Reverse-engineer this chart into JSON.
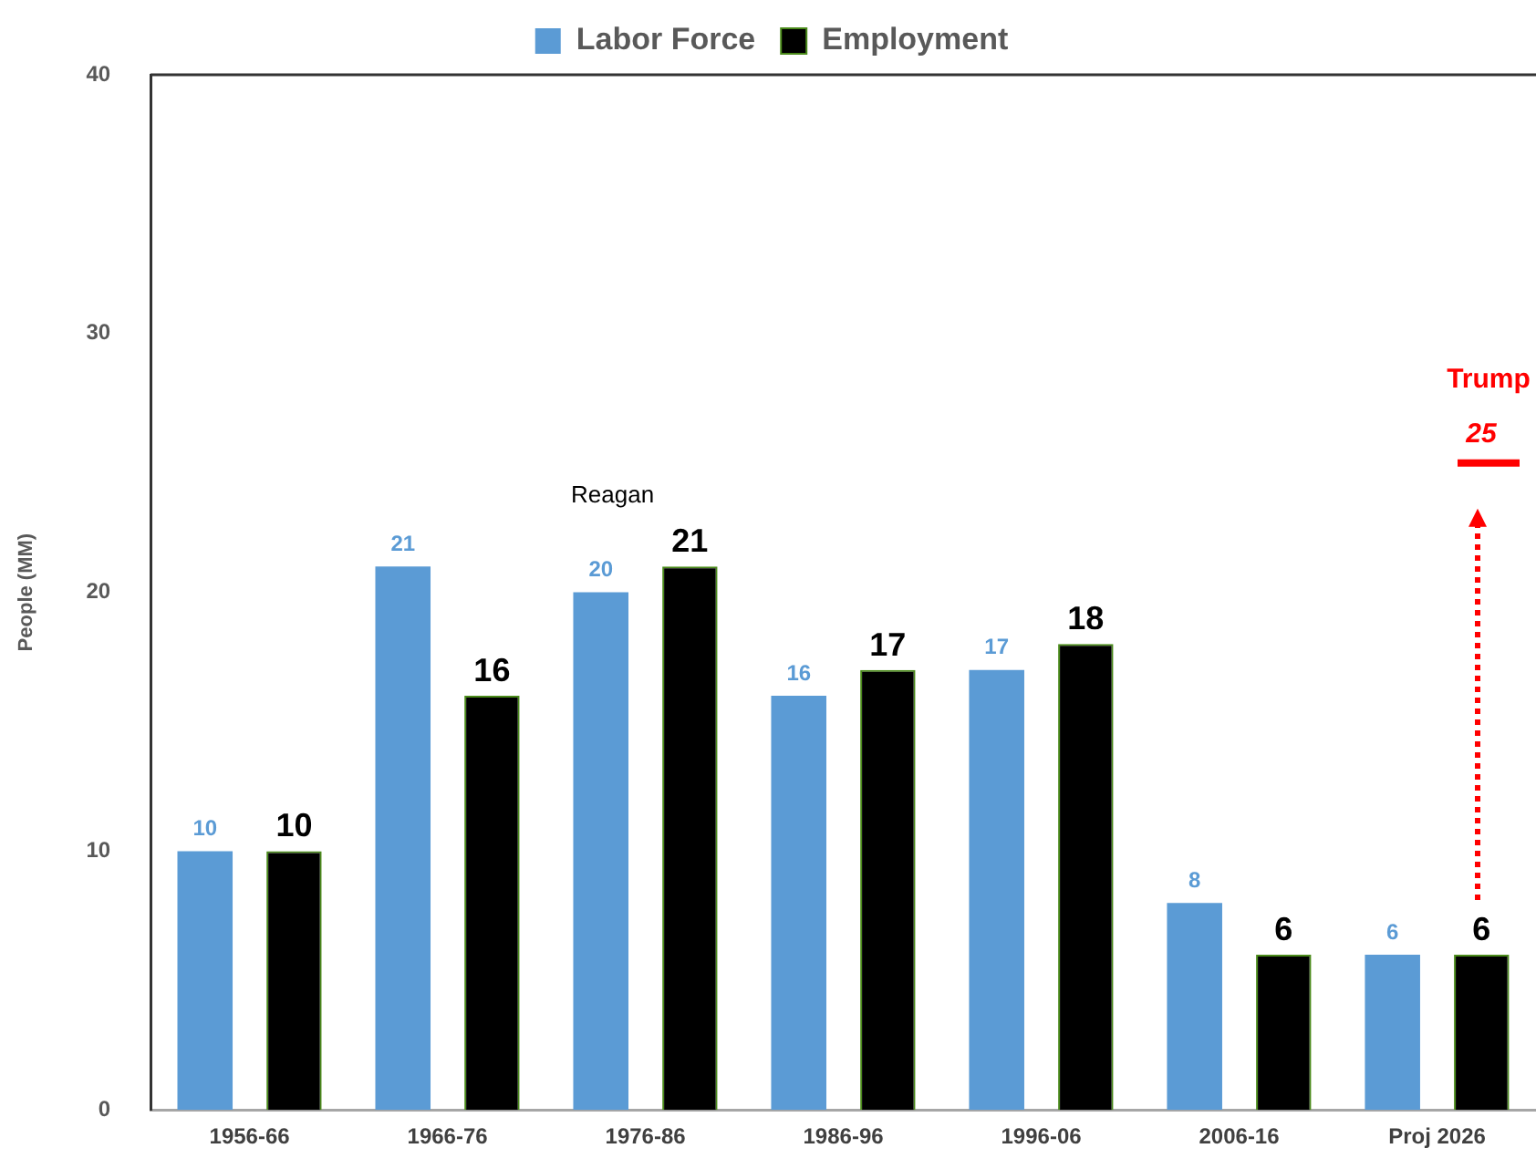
{
  "chart_data": {
    "type": "bar",
    "ylabel": "People (MM)",
    "categories": [
      "1956-66",
      "1966-76",
      "1976-86",
      "1986-96",
      "1996-06",
      "2006-16",
      "Proj 2026"
    ],
    "series": [
      {
        "name": "Labor Force",
        "color": "#5b9bd5",
        "values": [
          10,
          21,
          20,
          16,
          17,
          8,
          6
        ]
      },
      {
        "name": "Employment",
        "color": "#000000",
        "values": [
          10,
          16,
          21,
          17,
          18,
          6,
          6
        ]
      }
    ],
    "ylim": [
      0,
      40
    ],
    "yticks": [
      0,
      10,
      20,
      30,
      40
    ],
    "grid": false,
    "legend": "top",
    "data_labels": true,
    "ref_lines": [
      {
        "axis": "y",
        "value": 25,
        "label": "25",
        "color": "#ff0000"
      }
    ],
    "annotations": [
      "Reagan",
      "Trump"
    ]
  }
}
